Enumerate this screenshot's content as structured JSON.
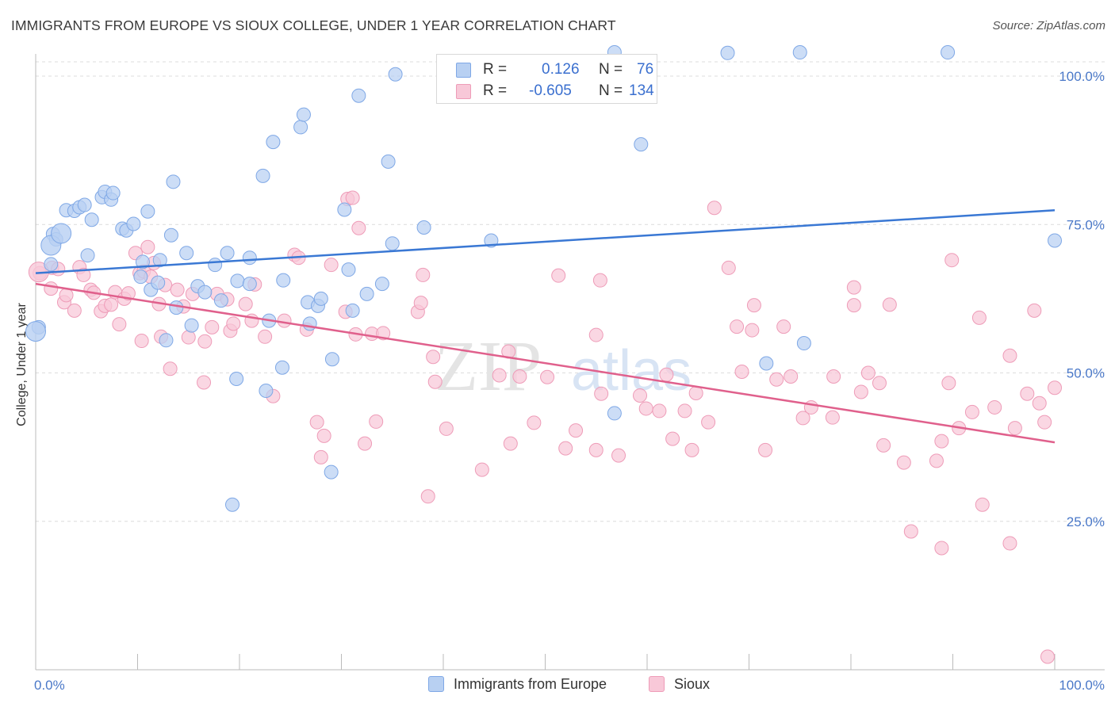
{
  "header": {
    "title": "IMMIGRANTS FROM EUROPE VS SIOUX COLLEGE, UNDER 1 YEAR CORRELATION CHART",
    "source": "Source: ZipAtlas.com"
  },
  "watermark": {
    "part1": "ZIP",
    "part2": "atlas"
  },
  "stats": {
    "blue": {
      "r_label": "R =",
      "r_value": "0.126",
      "n_label": "N =",
      "n_value": "76"
    },
    "pink": {
      "r_label": "R =",
      "r_value": "-0.605",
      "n_label": "N =",
      "n_value": "134"
    }
  },
  "legend": {
    "blue_label": "Immigrants from Europe",
    "pink_label": "Sioux"
  },
  "colors": {
    "blue_fill": "#b8d0f2",
    "blue_stroke": "#7fa8e6",
    "blue_line": "#3a78d4",
    "pink_fill": "#f8c8d8",
    "pink_stroke": "#ee9cb8",
    "pink_line": "#e0608c",
    "tick_text": "#4a78c8",
    "grid": "#dcdcdc"
  },
  "chart_data": {
    "type": "scatter",
    "title": "IMMIGRANTS FROM EUROPE VS SIOUX COLLEGE, UNDER 1 YEAR CORRELATION CHART",
    "xlabel": "",
    "ylabel": "College, Under 1 year",
    "xlim": [
      0,
      100
    ],
    "ylim": [
      0,
      104
    ],
    "x_tick_labels": [
      "0.0%",
      "100.0%"
    ],
    "y_ticks": [
      25,
      50,
      75,
      100
    ],
    "y_tick_labels": [
      "25.0%",
      "50.0%",
      "75.0%",
      "100.0%"
    ],
    "grid": true,
    "series": [
      {
        "name": "Immigrants from Europe",
        "color": "blue",
        "r": 0.126,
        "n": 76,
        "trend": [
          [
            0,
            66.8
          ],
          [
            100,
            77.4
          ]
        ],
        "points": [
          [
            0.3,
            57.7
          ],
          [
            1.5,
            68.3
          ],
          [
            1.7,
            73.4
          ],
          [
            2.0,
            72.5
          ],
          [
            3.0,
            77.4
          ],
          [
            3.8,
            77.3
          ],
          [
            4.3,
            77.9
          ],
          [
            4.8,
            78.3
          ],
          [
            5.1,
            69.8
          ],
          [
            5.5,
            75.8
          ],
          [
            6.5,
            79.6
          ],
          [
            6.8,
            80.5
          ],
          [
            7.4,
            79.2
          ],
          [
            7.6,
            80.3
          ],
          [
            8.5,
            74.3
          ],
          [
            8.9,
            74.0
          ],
          [
            9.6,
            75.1
          ],
          [
            10.5,
            68.7
          ],
          [
            10.3,
            66.2
          ],
          [
            11.0,
            77.2
          ],
          [
            11.3,
            64.0
          ],
          [
            12.0,
            65.2
          ],
          [
            12.2,
            69.0
          ],
          [
            12.8,
            55.5
          ],
          [
            13.3,
            73.2
          ],
          [
            13.5,
            82.2
          ],
          [
            13.8,
            61.0
          ],
          [
            14.8,
            70.2
          ],
          [
            15.3,
            58.0
          ],
          [
            15.9,
            64.6
          ],
          [
            16.6,
            63.6
          ],
          [
            17.6,
            68.2
          ],
          [
            18.2,
            62.2
          ],
          [
            18.8,
            70.2
          ],
          [
            19.7,
            49.0
          ],
          [
            19.8,
            65.5
          ],
          [
            19.3,
            27.8
          ],
          [
            21.0,
            65.0
          ],
          [
            21.0,
            69.4
          ],
          [
            22.3,
            83.2
          ],
          [
            22.6,
            47.0
          ],
          [
            22.9,
            58.8
          ],
          [
            23.3,
            88.9
          ],
          [
            24.2,
            50.9
          ],
          [
            24.3,
            65.6
          ],
          [
            26.0,
            91.4
          ],
          [
            26.3,
            93.5
          ],
          [
            26.7,
            61.9
          ],
          [
            26.9,
            58.3
          ],
          [
            27.7,
            61.3
          ],
          [
            28.0,
            62.5
          ],
          [
            29.0,
            33.3
          ],
          [
            29.1,
            52.3
          ],
          [
            30.3,
            77.5
          ],
          [
            30.7,
            67.4
          ],
          [
            31.1,
            60.5
          ],
          [
            31.7,
            96.7
          ],
          [
            32.5,
            63.3
          ],
          [
            34.0,
            65.0
          ],
          [
            34.6,
            85.6
          ],
          [
            35.0,
            71.8
          ],
          [
            35.3,
            100.3
          ],
          [
            38.1,
            74.5
          ],
          [
            44.7,
            72.3
          ],
          [
            56.8,
            43.2
          ],
          [
            56.8,
            104.0
          ],
          [
            59.4,
            88.5
          ],
          [
            67.9,
            103.9
          ],
          [
            71.7,
            51.6
          ],
          [
            75.0,
            104.0
          ],
          [
            75.4,
            55.0
          ],
          [
            89.5,
            104.0
          ],
          [
            100.0,
            72.3
          ]
        ],
        "large_points": [
          [
            0.0,
            57.0
          ],
          [
            1.5,
            71.5
          ],
          [
            2.5,
            73.5
          ]
        ]
      },
      {
        "name": "Sioux",
        "color": "pink",
        "r": -0.605,
        "n": 134,
        "trend": [
          [
            0,
            65.0
          ],
          [
            100,
            38.3
          ]
        ],
        "points": [
          [
            0.4,
            66.8
          ],
          [
            1.5,
            64.2
          ],
          [
            1.6,
            67.7
          ],
          [
            2.2,
            67.5
          ],
          [
            2.8,
            61.9
          ],
          [
            3.0,
            63.1
          ],
          [
            3.8,
            60.5
          ],
          [
            4.3,
            67.8
          ],
          [
            4.7,
            66.5
          ],
          [
            5.4,
            64.0
          ],
          [
            5.7,
            63.5
          ],
          [
            6.4,
            60.4
          ],
          [
            6.8,
            61.3
          ],
          [
            7.4,
            61.5
          ],
          [
            7.8,
            63.6
          ],
          [
            8.2,
            58.2
          ],
          [
            8.7,
            62.5
          ],
          [
            9.1,
            63.4
          ],
          [
            9.8,
            70.2
          ],
          [
            10.2,
            66.8
          ],
          [
            10.4,
            55.4
          ],
          [
            10.6,
            67.1
          ],
          [
            11.0,
            71.2
          ],
          [
            11.3,
            66.2
          ],
          [
            11.6,
            68.5
          ],
          [
            12.1,
            61.6
          ],
          [
            12.3,
            56.1
          ],
          [
            12.7,
            64.8
          ],
          [
            13.2,
            50.7
          ],
          [
            13.9,
            64.0
          ],
          [
            14.5,
            61.2
          ],
          [
            15.0,
            56.0
          ],
          [
            15.4,
            63.3
          ],
          [
            16.5,
            48.4
          ],
          [
            16.6,
            55.3
          ],
          [
            17.3,
            57.7
          ],
          [
            17.8,
            63.3
          ],
          [
            18.8,
            62.4
          ],
          [
            19.1,
            57.1
          ],
          [
            19.4,
            58.3
          ],
          [
            20.6,
            61.6
          ],
          [
            21.2,
            58.8
          ],
          [
            21.5,
            64.9
          ],
          [
            22.5,
            56.1
          ],
          [
            23.3,
            46.1
          ],
          [
            24.4,
            58.8
          ],
          [
            25.4,
            69.9
          ],
          [
            25.8,
            69.4
          ],
          [
            26.6,
            57.3
          ],
          [
            27.6,
            41.7
          ],
          [
            28.0,
            35.8
          ],
          [
            28.3,
            39.4
          ],
          [
            29.0,
            68.2
          ],
          [
            30.4,
            60.3
          ],
          [
            30.6,
            79.3
          ],
          [
            31.1,
            79.5
          ],
          [
            31.4,
            56.5
          ],
          [
            31.7,
            74.4
          ],
          [
            32.3,
            38.1
          ],
          [
            33.0,
            56.6
          ],
          [
            33.4,
            41.8
          ],
          [
            34.1,
            56.7
          ],
          [
            37.5,
            60.3
          ],
          [
            37.8,
            61.8
          ],
          [
            38.0,
            66.5
          ],
          [
            38.5,
            29.2
          ],
          [
            39.0,
            52.7
          ],
          [
            39.2,
            48.5
          ],
          [
            40.3,
            40.6
          ],
          [
            43.8,
            33.7
          ],
          [
            45.5,
            49.6
          ],
          [
            46.4,
            53.6
          ],
          [
            46.6,
            38.1
          ],
          [
            47.5,
            49.4
          ],
          [
            48.9,
            41.6
          ],
          [
            50.2,
            49.3
          ],
          [
            51.3,
            66.4
          ],
          [
            52.0,
            37.3
          ],
          [
            53.0,
            40.3
          ],
          [
            55.0,
            56.4
          ],
          [
            55.0,
            37.0
          ],
          [
            55.5,
            46.5
          ],
          [
            55.4,
            65.6
          ],
          [
            57.2,
            36.1
          ],
          [
            59.3,
            46.2
          ],
          [
            59.9,
            44.0
          ],
          [
            61.2,
            43.6
          ],
          [
            61.9,
            49.7
          ],
          [
            62.5,
            38.9
          ],
          [
            63.7,
            43.6
          ],
          [
            64.4,
            37.0
          ],
          [
            64.8,
            46.6
          ],
          [
            66.0,
            41.7
          ],
          [
            66.6,
            77.8
          ],
          [
            68.0,
            67.7
          ],
          [
            68.8,
            57.8
          ],
          [
            69.3,
            50.2
          ],
          [
            70.3,
            57.2
          ],
          [
            70.5,
            61.4
          ],
          [
            71.6,
            37.0
          ],
          [
            72.7,
            48.9
          ],
          [
            73.4,
            57.8
          ],
          [
            74.1,
            49.4
          ],
          [
            75.3,
            42.4
          ],
          [
            76.1,
            44.2
          ],
          [
            78.2,
            42.5
          ],
          [
            78.3,
            49.4
          ],
          [
            80.3,
            64.4
          ],
          [
            80.3,
            61.4
          ],
          [
            81.0,
            46.8
          ],
          [
            81.7,
            50.0
          ],
          [
            82.8,
            48.3
          ],
          [
            83.8,
            61.5
          ],
          [
            85.2,
            34.9
          ],
          [
            88.4,
            35.2
          ],
          [
            88.9,
            38.5
          ],
          [
            89.6,
            48.3
          ],
          [
            89.9,
            69.0
          ],
          [
            90.6,
            40.7
          ],
          [
            91.9,
            43.4
          ],
          [
            92.6,
            59.3
          ],
          [
            94.1,
            44.2
          ],
          [
            95.6,
            52.9
          ],
          [
            96.1,
            40.7
          ],
          [
            97.3,
            46.5
          ],
          [
            98.0,
            60.5
          ],
          [
            98.5,
            44.9
          ],
          [
            99.0,
            41.7
          ],
          [
            100.0,
            47.5
          ],
          [
            99.3,
            2.2
          ],
          [
            85.9,
            23.3
          ],
          [
            88.9,
            20.5
          ],
          [
            95.6,
            21.3
          ],
          [
            83.2,
            37.8
          ],
          [
            92.9,
            27.8
          ]
        ],
        "large_points": [
          [
            0.3,
            67.0
          ]
        ]
      }
    ]
  }
}
